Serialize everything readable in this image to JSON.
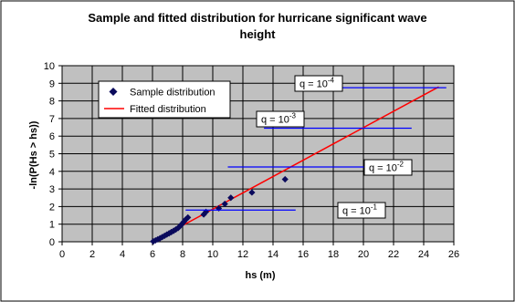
{
  "chart_data": {
    "type": "scatter",
    "title_line1": "Sample and fitted distribution for hurricane significant wave",
    "title_line2": "height",
    "xlabel": "hs  (m)",
    "ylabel": "-ln(P(Hs > hs))",
    "xlim": [
      0,
      26
    ],
    "ylim": [
      0,
      10
    ],
    "x_ticks": [
      "0",
      "2",
      "4",
      "6",
      "8",
      "10",
      "12",
      "14",
      "16",
      "18",
      "20",
      "22",
      "24",
      "26"
    ],
    "y_ticks": [
      "0",
      "1",
      "2",
      "3",
      "4",
      "5",
      "6",
      "7",
      "8",
      "9",
      "10"
    ],
    "grid": "major-both",
    "legend_position": "upper-left",
    "series": [
      {
        "name": "Sample distribution",
        "kind": "markers",
        "marker": "diamond",
        "color": "#0a0a5c",
        "points": [
          [
            6.05,
            0.02
          ],
          [
            6.2,
            0.08
          ],
          [
            6.35,
            0.14
          ],
          [
            6.5,
            0.2
          ],
          [
            6.65,
            0.27
          ],
          [
            6.8,
            0.34
          ],
          [
            6.95,
            0.41
          ],
          [
            7.1,
            0.48
          ],
          [
            7.25,
            0.55
          ],
          [
            7.4,
            0.62
          ],
          [
            7.55,
            0.7
          ],
          [
            7.7,
            0.78
          ],
          [
            7.8,
            0.87
          ],
          [
            7.9,
            0.96
          ],
          [
            8.0,
            1.05
          ],
          [
            8.1,
            1.15
          ],
          [
            8.2,
            1.26
          ],
          [
            8.35,
            1.38
          ],
          [
            9.4,
            1.55
          ],
          [
            9.55,
            1.7
          ],
          [
            10.4,
            1.9
          ],
          [
            10.8,
            2.15
          ],
          [
            11.2,
            2.5
          ],
          [
            12.6,
            2.8
          ],
          [
            14.8,
            3.55
          ]
        ]
      },
      {
        "name": "Fitted distribution",
        "kind": "line",
        "color": "#ff0000",
        "points": [
          [
            6.0,
            0.0
          ],
          [
            25.0,
            8.8
          ]
        ]
      }
    ],
    "annotations": [
      {
        "base": "q = 10",
        "exp": "-1",
        "line_x": [
          8.2,
          15.5
        ],
        "y": 1.8
      },
      {
        "base": "q = 10",
        "exp": "-2",
        "line_x": [
          11.0,
          22.5
        ],
        "y": 4.25
      },
      {
        "base": "q = 10",
        "exp": "-3",
        "line_x": [
          13.4,
          23.2
        ],
        "y": 6.45
      },
      {
        "base": "q = 10",
        "exp": "-4",
        "line_x": [
          16.1,
          25.5
        ],
        "y": 8.75
      }
    ]
  }
}
